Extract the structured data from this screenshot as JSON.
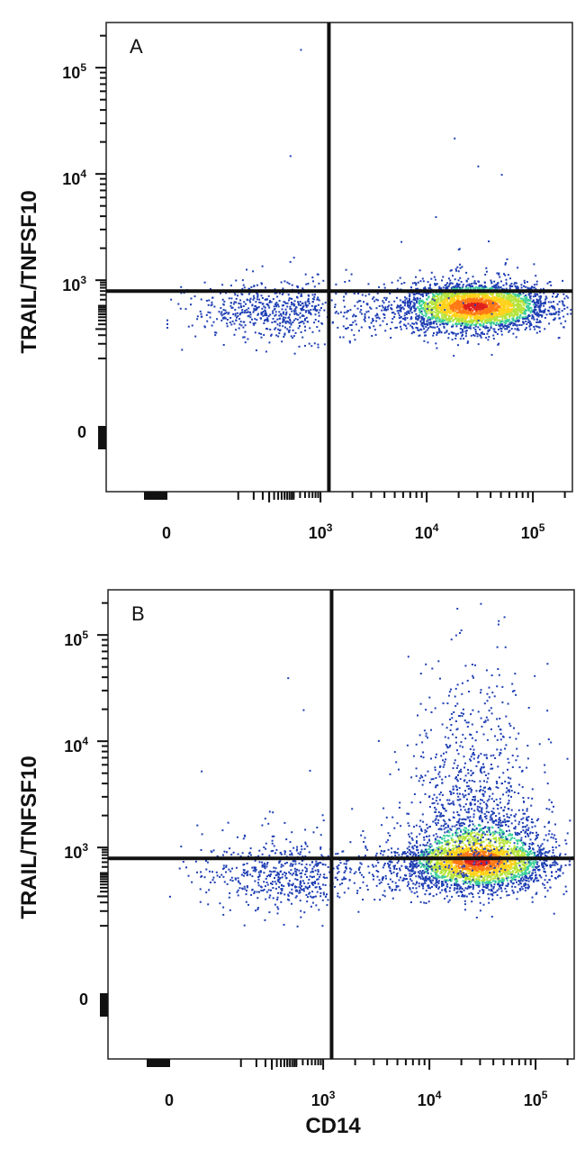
{
  "figure": {
    "ylabel": "TRAIL/TNFSF10",
    "xlabel": "CD14"
  },
  "chart_data": [
    {
      "type": "scatter",
      "panel_label": "A",
      "xlabel": "",
      "ylabel": "TRAIL/TNFSF10",
      "x_scale": "biexponential",
      "y_scale": "biexponential",
      "x_ticks": [
        "0",
        "10^3",
        "10^4",
        "10^5"
      ],
      "y_ticks": [
        "0",
        "10^3",
        "10^4",
        "10^5"
      ],
      "xlim": [
        -300,
        250000
      ],
      "ylim": [
        -300,
        250000
      ],
      "quadrant_gate": {
        "x": 1200,
        "y": 600
      },
      "populations": [
        {
          "name": "",
          "center": [
            28000,
            300
          ],
          "spread_decades": [
            0.35,
            0.25
          ],
          "density": "high"
        },
        {
          "name": "",
          "center": [
            200,
            250
          ],
          "spread_decades": [
            0.9,
            0.3
          ],
          "density": "low"
        }
      ],
      "rare_events": [
        [
          400,
          150000
        ],
        [
          18000,
          22000
        ],
        [
          12000,
          4000
        ],
        [
          30000,
          12000
        ],
        [
          50000,
          10000
        ],
        [
          250,
          15000
        ]
      ],
      "colormap": [
        "#1f3fb4",
        "#2b8fd6",
        "#3ccf9a",
        "#b6e33c",
        "#ffd21a",
        "#ff7a14",
        "#e0201c"
      ]
    },
    {
      "type": "scatter",
      "panel_label": "B",
      "xlabel": "CD14",
      "ylabel": "TRAIL/TNFSF10",
      "x_scale": "biexponential",
      "y_scale": "biexponential",
      "x_ticks": [
        "0",
        "10^3",
        "10^4",
        "10^5"
      ],
      "y_ticks": [
        "0",
        "10^3",
        "10^4",
        "10^5"
      ],
      "xlim": [
        -300,
        250000
      ],
      "ylim": [
        -300,
        250000
      ],
      "quadrant_gate": {
        "x": 1200,
        "y": 600
      },
      "populations": [
        {
          "name": "",
          "center": [
            28000,
            550
          ],
          "spread_decades": [
            0.35,
            0.3
          ],
          "density": "high"
        },
        {
          "name": "",
          "center": [
            250,
            300
          ],
          "spread_decades": [
            0.9,
            0.35
          ],
          "density": "low"
        },
        {
          "name": "",
          "center": [
            25000,
            3000
          ],
          "spread_decades": [
            0.3,
            0.6
          ],
          "density": "low"
        }
      ],
      "rare_events": [
        [
          18000,
          180000
        ],
        [
          30000,
          200000
        ],
        [
          50000,
          150000
        ],
        [
          200,
          40000
        ],
        [
          400,
          20000
        ],
        [
          60000,
          30000
        ]
      ],
      "colormap": [
        "#1f3fb4",
        "#2b8fd6",
        "#3ccf9a",
        "#b6e33c",
        "#ffd21a",
        "#ff7a14",
        "#e0201c"
      ]
    }
  ]
}
